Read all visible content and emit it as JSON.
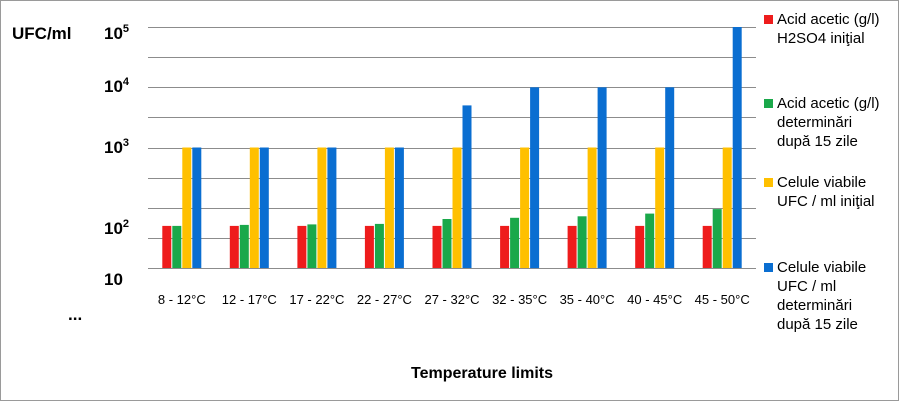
{
  "chart_data": {
    "type": "bar",
    "ylabel": "UFC/ml",
    "xlabel": "Temperature limits",
    "y_scale": "log",
    "ylim": [
      10,
      100000
    ],
    "grid": "horizontal",
    "legend_position": "right",
    "y_ticks": [
      {
        "base": "10",
        "exp": "5"
      },
      {
        "base": "10",
        "exp": "4"
      },
      {
        "base": "10",
        "exp": "3"
      },
      {
        "base": "10",
        "exp": "2"
      },
      {
        "base": "10",
        "exp": ""
      }
    ],
    "y_extra_label": "...",
    "categories": [
      "8 - 12°C",
      "12 - 17°C",
      "17 - 22°C",
      "22 - 27°C",
      "27 - 32°C",
      "32 - 35°C",
      "35 - 40°C",
      "40 - 45°C",
      "45 - 50°C"
    ],
    "series": [
      {
        "name": "Acid acetic (g/l) H2SO4 iniţial",
        "color": "#ee1c1c",
        "values": [
          50,
          50,
          50,
          50,
          50,
          50,
          50,
          50,
          50
        ]
      },
      {
        "name": "Acid acetic (g/l) determinări după 15 zile",
        "color": "#1aa84a",
        "values": [
          50,
          52,
          53,
          54,
          65,
          68,
          72,
          80,
          95
        ]
      },
      {
        "name": "Celule viabile UFC / ml iniţial",
        "color": "#ffc000",
        "values": [
          1000,
          1000,
          1000,
          1000,
          1000,
          1000,
          1000,
          1000,
          1000
        ]
      },
      {
        "name": "Celule viabile UFC / ml determinări după 15 zile",
        "color": "#0a6ed1",
        "values": [
          1000,
          1000,
          1000,
          1000,
          5000,
          10000,
          10000,
          10000,
          100000
        ]
      }
    ],
    "legend_lines": [
      [
        "Acid acetic (g/l)",
        "H2SO4 iniţial"
      ],
      [
        "Acid acetic (g/l)",
        "determinări",
        "după 15 zile"
      ],
      [
        "Celule viabile",
        "UFC / ml iniţial"
      ],
      [
        "Celule viabile",
        "UFC / ml",
        "determinări",
        "după 15 zile"
      ]
    ]
  }
}
